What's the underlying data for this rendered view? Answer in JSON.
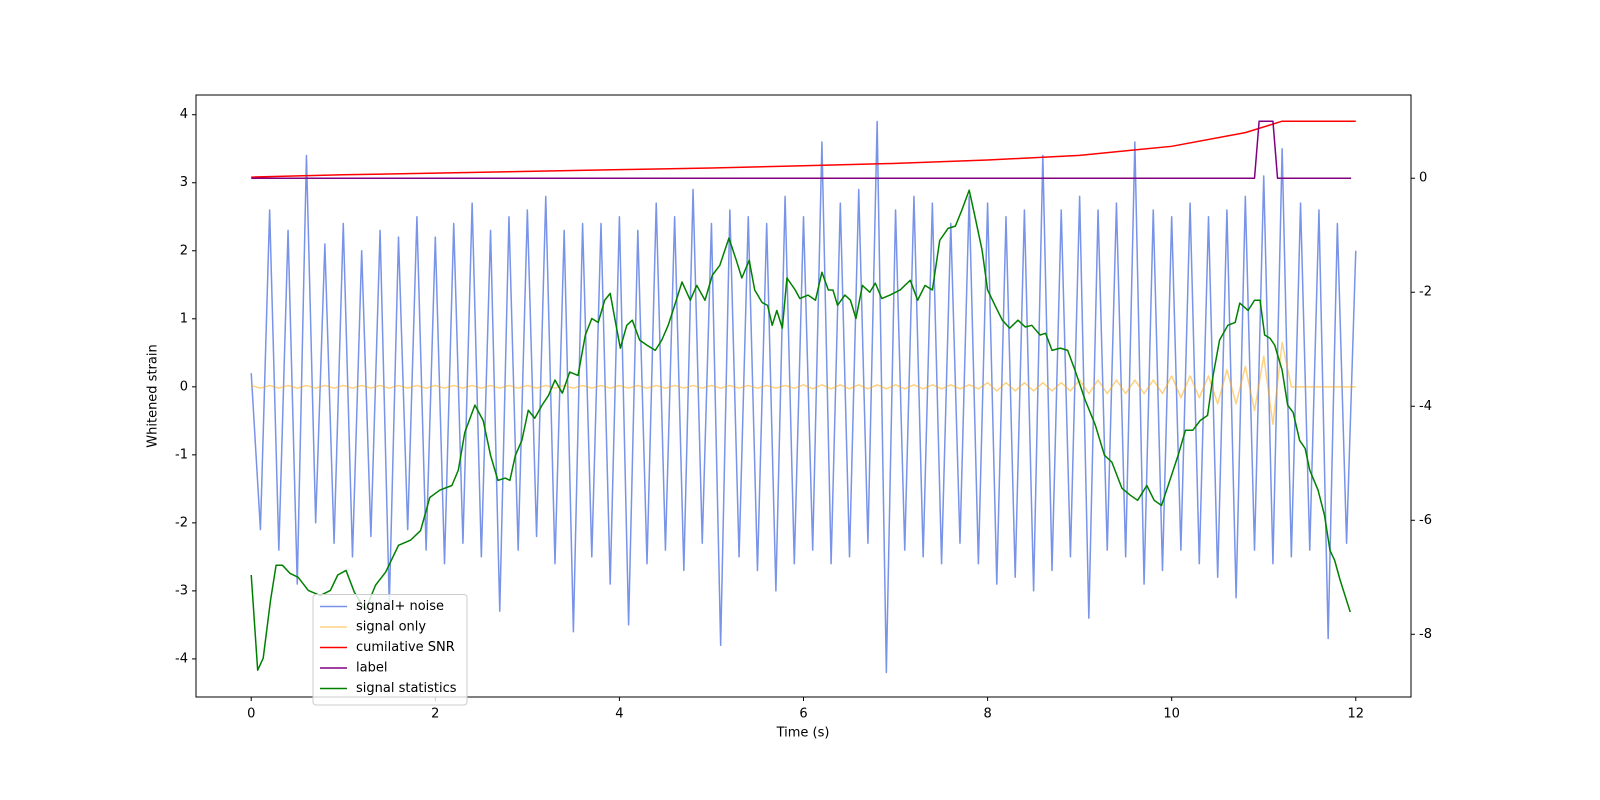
{
  "chart_data": {
    "type": "line",
    "xlabel": "Time (s)",
    "ylabel": "Whitened strain",
    "xlim": [
      -0.6,
      12.6
    ],
    "ylim": [
      -4.56,
      4.29
    ],
    "y2lim": [
      -9.1,
      1.46
    ],
    "xticks": [
      0,
      2,
      4,
      6,
      8,
      10,
      12
    ],
    "yticks": [
      -4,
      -3,
      -2,
      -1,
      0,
      1,
      2,
      3,
      4
    ],
    "y2ticks": [
      -8,
      -6,
      -4,
      -2,
      0
    ],
    "legend": "lower left",
    "x": [
      0,
      0.1,
      0.2,
      0.3,
      0.4,
      0.5,
      0.6,
      0.7,
      0.8,
      0.9,
      1,
      1.1,
      1.2,
      1.3,
      1.4,
      1.5,
      1.6,
      1.7,
      1.8,
      1.9,
      2,
      2.1,
      2.2,
      2.3,
      2.4,
      2.5,
      2.6,
      2.7,
      2.8,
      2.9,
      3,
      3.1,
      3.2,
      3.3,
      3.4,
      3.5,
      3.6,
      3.7,
      3.8,
      3.9,
      4,
      4.1,
      4.2,
      4.3,
      4.4,
      4.5,
      4.6,
      4.7,
      4.8,
      4.9,
      5,
      5.1,
      5.2,
      5.3,
      5.4,
      5.5,
      5.6,
      5.7,
      5.8,
      5.9,
      6,
      6.1,
      6.2,
      6.3,
      6.4,
      6.5,
      6.6,
      6.7,
      6.8,
      6.9,
      7,
      7.1,
      7.2,
      7.3,
      7.4,
      7.5,
      7.6,
      7.7,
      7.8,
      7.9,
      8,
      8.1,
      8.2,
      8.3,
      8.4,
      8.5,
      8.6,
      8.7,
      8.8,
      8.9,
      9,
      9.1,
      9.2,
      9.3,
      9.4,
      9.5,
      9.6,
      9.7,
      9.8,
      9.9,
      10,
      10.1,
      10.2,
      10.3,
      10.4,
      10.5,
      10.6,
      10.7,
      10.8,
      10.9,
      11,
      11.1,
      11.2,
      11.3,
      11.4,
      11.5,
      11.6,
      11.7,
      11.8,
      11.9,
      12
    ],
    "series": [
      {
        "name": "signal+ noise",
        "color": "#7893e8",
        "values": [
          0.2,
          -2.1,
          2.6,
          -2.4,
          2.3,
          -2.9,
          3.4,
          -2.0,
          2.1,
          -2.3,
          2.4,
          -2.5,
          2.0,
          -2.2,
          2.3,
          -3.2,
          2.2,
          -2.1,
          2.5,
          -2.4,
          2.2,
          -2.6,
          2.4,
          -2.3,
          2.7,
          -2.5,
          2.3,
          -3.3,
          2.5,
          -2.4,
          2.6,
          -2.2,
          2.8,
          -2.6,
          2.3,
          -3.6,
          2.4,
          -2.5,
          2.4,
          -2.9,
          2.5,
          -3.5,
          2.3,
          -2.6,
          2.7,
          -2.4,
          2.5,
          -2.7,
          2.9,
          -2.3,
          2.4,
          -3.8,
          2.6,
          -2.5,
          2.5,
          -2.7,
          2.4,
          -3.0,
          2.8,
          -2.6,
          2.5,
          -2.4,
          3.6,
          -2.6,
          2.7,
          -2.5,
          2.9,
          -2.3,
          3.9,
          -4.2,
          2.6,
          -2.4,
          2.8,
          -2.5,
          2.7,
          -2.6,
          2.4,
          -2.3,
          2.8,
          -2.6,
          2.7,
          -2.9,
          2.5,
          -2.8,
          2.6,
          -3.0,
          3.4,
          -2.7,
          2.6,
          -2.5,
          2.8,
          -3.4,
          2.6,
          -2.4,
          2.7,
          -2.5,
          3.6,
          -2.9,
          2.6,
          -2.7,
          2.5,
          -2.4,
          2.7,
          -2.6,
          2.5,
          -2.8,
          2.6,
          -3.1,
          2.8,
          -2.4,
          3.1,
          -2.6,
          3.5,
          -2.5,
          2.7,
          -2.4,
          2.6,
          -3.7,
          2.4,
          -2.3,
          2.0
        ]
      },
      {
        "name": "signal only",
        "color": "#ffa500",
        "opacity": 0.5,
        "values": [
          0.02,
          -0.02,
          0.02,
          -0.02,
          0.02,
          -0.02,
          0.02,
          -0.02,
          0.02,
          -0.02,
          0.02,
          -0.02,
          0.02,
          -0.02,
          0.02,
          -0.02,
          0.02,
          -0.02,
          0.02,
          -0.02,
          0.02,
          -0.02,
          0.02,
          -0.02,
          0.02,
          -0.02,
          0.02,
          -0.02,
          0.02,
          -0.02,
          0.02,
          -0.02,
          0.02,
          -0.02,
          0.02,
          -0.02,
          0.02,
          -0.02,
          0.02,
          -0.02,
          0.02,
          -0.02,
          0.02,
          -0.02,
          0.02,
          -0.02,
          0.02,
          -0.02,
          0.02,
          -0.02,
          0.02,
          -0.02,
          0.02,
          -0.02,
          0.02,
          -0.02,
          0.02,
          -0.02,
          0.02,
          -0.02,
          0.03,
          -0.03,
          0.03,
          -0.03,
          0.03,
          -0.03,
          0.03,
          -0.03,
          0.03,
          -0.03,
          0.03,
          -0.03,
          0.03,
          -0.03,
          0.03,
          -0.03,
          0.03,
          -0.03,
          0.03,
          -0.03,
          0.06,
          -0.06,
          0.06,
          -0.06,
          0.06,
          -0.06,
          0.06,
          -0.06,
          0.06,
          -0.06,
          0.1,
          -0.1,
          0.1,
          -0.1,
          0.1,
          -0.1,
          0.1,
          -0.1,
          0.1,
          -0.1,
          0.16,
          -0.16,
          0.16,
          -0.16,
          0.16,
          -0.25,
          0.25,
          -0.25,
          0.3,
          -0.35,
          0.45,
          -0.55,
          0.65,
          0,
          0,
          0,
          0,
          0,
          0,
          0,
          0
        ]
      },
      {
        "name": "cumilative SNR",
        "color": "#ff0000",
        "axis": "y2",
        "x": [
          0,
          1,
          2,
          3,
          4,
          5,
          6,
          7,
          8,
          9,
          10,
          10.8,
          11.2,
          12
        ],
        "values": [
          0.02,
          0.06,
          0.09,
          0.12,
          0.15,
          0.18,
          0.22,
          0.26,
          0.32,
          0.4,
          0.56,
          0.8,
          1.0,
          1.0
        ]
      },
      {
        "name": "label",
        "color": "#800080",
        "axis": "y2",
        "x": [
          0,
          10.9,
          10.95,
          11.1,
          11.15,
          11.95
        ],
        "values": [
          0,
          0,
          1,
          1,
          0,
          0
        ]
      },
      {
        "name": "signal statistics",
        "color": "#008000",
        "axis": "y2",
        "x": [
          0,
          0.07,
          0.13,
          0.21,
          0.27,
          0.34,
          0.42,
          0.51,
          0.62,
          0.75,
          0.86,
          0.94,
          1.03,
          1.12,
          1.24,
          1.35,
          1.46,
          1.6,
          1.73,
          1.84,
          1.94,
          2.05,
          2.18,
          2.25,
          2.32,
          2.43,
          2.52,
          2.6,
          2.68,
          2.76,
          2.81,
          2.87,
          2.94,
          3.01,
          3.08,
          3.16,
          3.23,
          3.3,
          3.38,
          3.46,
          3.55,
          3.63,
          3.7,
          3.77,
          3.84,
          3.9,
          3.95,
          4.01,
          4.08,
          4.14,
          4.22,
          4.3,
          4.39,
          4.46,
          4.53,
          4.6,
          4.68,
          4.77,
          4.84,
          4.93,
          5.01,
          5.09,
          5.19,
          5.27,
          5.33,
          5.41,
          5.47,
          5.55,
          5.61,
          5.66,
          5.71,
          5.77,
          5.82,
          5.91,
          5.96,
          6.05,
          6.13,
          6.2,
          6.27,
          6.32,
          6.37,
          6.45,
          6.51,
          6.57,
          6.64,
          6.72,
          6.78,
          6.85,
          6.94,
          7.05,
          7.16,
          7.24,
          7.32,
          7.4,
          7.48,
          7.57,
          7.65,
          7.72,
          7.8,
          7.86,
          7.94,
          8.0,
          8.08,
          8.16,
          8.24,
          8.33,
          8.41,
          8.48,
          8.57,
          8.63,
          8.7,
          8.79,
          8.87,
          8.95,
          9.06,
          9.17,
          9.27,
          9.35,
          9.46,
          9.55,
          9.63,
          9.73,
          9.81,
          9.89,
          9.98,
          10.07,
          10.15,
          10.23,
          10.31,
          10.39,
          10.45,
          10.52,
          10.61,
          10.69,
          10.74,
          10.83,
          10.9,
          10.96,
          11.01,
          11.07,
          11.12,
          11.2,
          11.26,
          11.32,
          11.39,
          11.45,
          11.5,
          11.59,
          11.66,
          11.72,
          11.77,
          11.83,
          11.94
        ],
        "values": [
          -6.96,
          -8.63,
          -8.42,
          -7.4,
          -6.79,
          -6.79,
          -6.93,
          -7.0,
          -7.23,
          -7.32,
          -7.23,
          -6.96,
          -6.88,
          -7.26,
          -7.58,
          -7.14,
          -6.91,
          -6.44,
          -6.35,
          -6.18,
          -5.6,
          -5.47,
          -5.39,
          -5.12,
          -4.46,
          -3.98,
          -4.25,
          -4.86,
          -5.3,
          -5.26,
          -5.3,
          -4.86,
          -4.6,
          -4.07,
          -4.21,
          -3.98,
          -3.81,
          -3.54,
          -3.77,
          -3.4,
          -3.46,
          -2.75,
          -2.46,
          -2.53,
          -2.14,
          -2.02,
          -2.46,
          -2.98,
          -2.58,
          -2.49,
          -2.84,
          -2.93,
          -3.02,
          -2.84,
          -2.58,
          -2.23,
          -1.82,
          -2.14,
          -1.88,
          -2.14,
          -1.7,
          -1.53,
          -1.05,
          -1.44,
          -1.75,
          -1.44,
          -1.96,
          -2.18,
          -2.23,
          -2.58,
          -2.32,
          -2.63,
          -1.75,
          -1.96,
          -2.11,
          -2.05,
          -2.14,
          -1.65,
          -1.96,
          -1.96,
          -2.23,
          -2.05,
          -2.14,
          -2.46,
          -1.88,
          -2.0,
          -1.84,
          -2.11,
          -2.05,
          -1.96,
          -1.79,
          -2.14,
          -1.88,
          -1.96,
          -1.09,
          -0.88,
          -0.84,
          -0.56,
          -0.21,
          -0.65,
          -1.26,
          -1.96,
          -2.23,
          -2.49,
          -2.63,
          -2.49,
          -2.61,
          -2.58,
          -2.75,
          -2.72,
          -3.02,
          -2.98,
          -3.02,
          -3.37,
          -3.89,
          -4.33,
          -4.86,
          -4.98,
          -5.44,
          -5.56,
          -5.65,
          -5.39,
          -5.65,
          -5.74,
          -5.3,
          -4.86,
          -4.42,
          -4.42,
          -4.25,
          -4.16,
          -3.46,
          -2.84,
          -2.58,
          -2.53,
          -2.19,
          -2.32,
          -2.14,
          -2.14,
          -2.75,
          -2.81,
          -2.93,
          -3.37,
          -3.98,
          -4.11,
          -4.6,
          -4.74,
          -5.12,
          -5.47,
          -5.91,
          -6.53,
          -6.7,
          -7.05,
          -7.61
        ]
      }
    ]
  }
}
